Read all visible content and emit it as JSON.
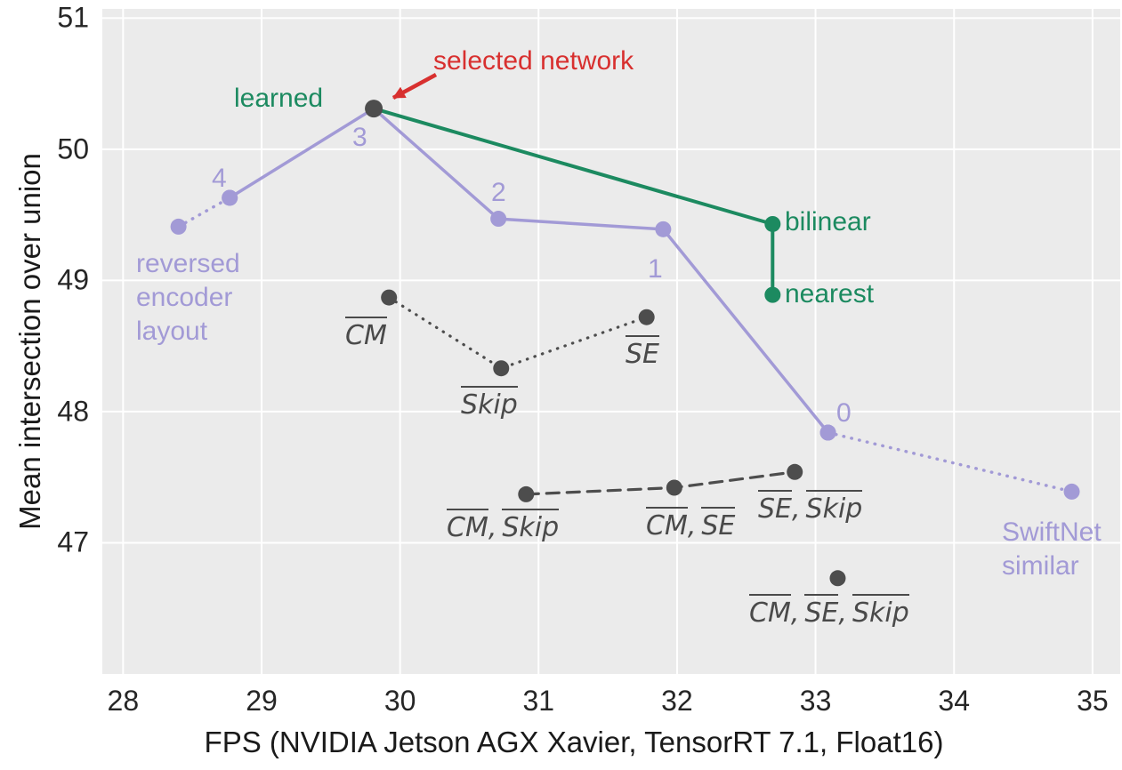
{
  "colors": {
    "purple": "#a29ad6",
    "green": "#1c8a60",
    "red": "#d8302f",
    "dark": "#4d4d4d",
    "tick_label": "#262626",
    "plot_background": "#ebebeb",
    "grid": "#ffffff"
  },
  "annotations": {
    "selected_network": "selected network",
    "reversed_encoder": [
      "reversed",
      "encoder",
      "layout"
    ],
    "swiftnet": [
      "SwiftNet",
      "similar"
    ],
    "ablation_labels": {
      "cm": [
        "CM"
      ],
      "skip": [
        "Skip"
      ],
      "se": [
        "SE"
      ],
      "cm_skip": [
        "CM",
        "Skip"
      ],
      "cm_se": [
        "CM",
        "SE"
      ],
      "se_skip": [
        "SE",
        "Skip"
      ],
      "cm_se_skip": [
        "CM",
        "SE",
        "Skip"
      ]
    }
  },
  "chart_data": {
    "type": "scatter",
    "title": "",
    "xlabel": "FPS (NVIDIA Jetson AGX Xavier, TensorRT 7.1, Float16)",
    "ylabel": "Mean intersection over union",
    "xlim": [
      27.85,
      35.2
    ],
    "ylim": [
      46.0,
      51.07
    ],
    "xticks": [
      28,
      29,
      30,
      31,
      32,
      33,
      34,
      35
    ],
    "yticks": [
      47,
      48,
      49,
      50,
      51
    ],
    "grid": true,
    "legend": "none",
    "series": [
      {
        "name": "learned-upsampling-stage-sweep",
        "color": "#a29ad6",
        "style": "solid",
        "width": 3.5,
        "points": [
          {
            "x": 28.77,
            "y": 49.63,
            "label": "4"
          },
          {
            "x": 29.81,
            "y": 50.31,
            "label": "3"
          },
          {
            "x": 30.71,
            "y": 49.47,
            "label": "2"
          },
          {
            "x": 31.9,
            "y": 49.39,
            "label": "1"
          },
          {
            "x": 33.09,
            "y": 47.84,
            "label": "0"
          }
        ]
      },
      {
        "name": "reversed-encoder-layout-link",
        "color": "#a29ad6",
        "style": "dotted",
        "width": 3.5,
        "points": [
          {
            "x": 28.4,
            "y": 49.41,
            "label": "reversed encoder layout"
          },
          {
            "x": 28.77,
            "y": 49.63
          }
        ]
      },
      {
        "name": "swiftnet-similar-link",
        "color": "#a29ad6",
        "style": "dotted",
        "width": 3.5,
        "points": [
          {
            "x": 33.09,
            "y": 47.84
          },
          {
            "x": 34.85,
            "y": 47.39,
            "label": "SwiftNet similar"
          }
        ]
      },
      {
        "name": "upsampling-kind-comparison",
        "color": "#1c8a60",
        "style": "solid",
        "width": 4,
        "points": [
          {
            "x": 29.81,
            "y": 50.31,
            "label": "learned"
          },
          {
            "x": 32.69,
            "y": 49.43,
            "label": "bilinear"
          },
          {
            "x": 32.69,
            "y": 48.89,
            "label": "nearest"
          }
        ]
      },
      {
        "name": "single-module-ablations",
        "color": "#4d4d4d",
        "style": "dotted",
        "width": 3.2,
        "points": [
          {
            "x": 29.92,
            "y": 48.87,
            "label": "CM"
          },
          {
            "x": 30.73,
            "y": 48.33,
            "label": "Skip"
          },
          {
            "x": 31.78,
            "y": 48.72,
            "label": "SE"
          }
        ]
      },
      {
        "name": "pair-module-ablations",
        "color": "#4d4d4d",
        "style": "dashed",
        "width": 3.2,
        "points": [
          {
            "x": 30.91,
            "y": 47.37,
            "label": "CM,Skip"
          },
          {
            "x": 31.98,
            "y": 47.42,
            "label": "CM,SE"
          },
          {
            "x": 32.85,
            "y": 47.54,
            "label": "SE,Skip"
          }
        ]
      },
      {
        "name": "triple-module-ablation",
        "color": "#4d4d4d",
        "style": "none",
        "width": 0,
        "points": [
          {
            "x": 33.16,
            "y": 46.73,
            "label": "CM,SE,Skip"
          }
        ]
      }
    ],
    "selected_point": {
      "name": "selected-network",
      "x": 29.81,
      "y": 50.31,
      "color": "#4d4d4d"
    }
  }
}
